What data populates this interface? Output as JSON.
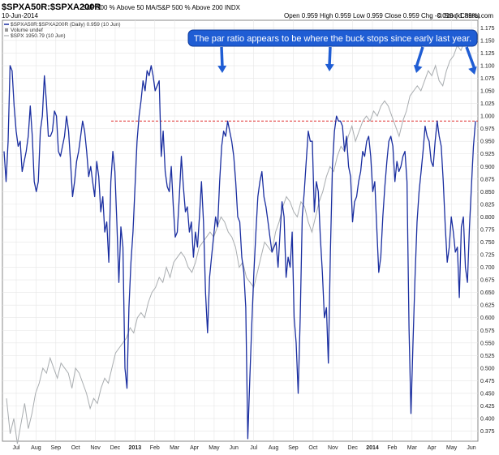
{
  "header": {
    "symbol": "$SPXA50R:$SPXA200R",
    "description": "S&P 500 % Above 50 MA/S&P 500 % Above 200 INDX",
    "date": "10-Jun-2014",
    "quote": "Open 0.959  High 0.959  Low 0.959  Close 0.959  Chg -0.019 (-1.89%)",
    "quote_color": "#000000",
    "watermark": "© StockCharts.com"
  },
  "legend": {
    "main": "$SPXA50R:$SPXA200R (Daily) 0.959 (10 Jun)",
    "volume": "Volume undef",
    "overlay": "$SPX 1950.79 (10 Jun)"
  },
  "annotation": {
    "text": "The par ratio appears to be where the buck stops since early last year.",
    "box_color": "#1f5dd4"
  },
  "colors": {
    "ratio_line": "#1a2ea0",
    "spx_line": "#a9adb0",
    "reference_line": "#e03030",
    "arrow": "#1f5dd4"
  },
  "chart_data": {
    "type": "line",
    "title": "$SPXA50R:$SPXA200R",
    "x_ticks": [
      "Jul",
      "Aug",
      "Sep",
      "Oct",
      "Nov",
      "Dec",
      "2013",
      "Feb",
      "Mar",
      "Apr",
      "May",
      "Jun",
      "Jul",
      "Aug",
      "Sep",
      "Oct",
      "Nov",
      "Dec",
      "2014",
      "Feb",
      "Mar",
      "Apr",
      "May",
      "Jun"
    ],
    "y_ticks": [
      0.375,
      0.4,
      0.425,
      0.45,
      0.475,
      0.5,
      0.525,
      0.55,
      0.575,
      0.6,
      0.625,
      0.65,
      0.675,
      0.7,
      0.725,
      0.75,
      0.775,
      0.8,
      0.825,
      0.85,
      0.875,
      0.9,
      0.925,
      0.95,
      0.975,
      1.0,
      1.025,
      1.05,
      1.075,
      1.1,
      1.125,
      1.15,
      1.175
    ],
    "ylim": [
      0.355,
      1.19
    ],
    "grid": true,
    "reference_line": 0.99,
    "series": [
      {
        "name": "$SPXA50R:$SPXA200R",
        "values": [
          0.93,
          0.87,
          0.95,
          1.1,
          1.09,
          1.02,
          0.97,
          0.94,
          0.95,
          0.89,
          0.91,
          0.93,
          0.96,
          1.02,
          0.96,
          0.87,
          0.85,
          0.87,
          0.97,
          1.0,
          1.08,
          1.03,
          0.96,
          0.96,
          0.97,
          1.01,
          1.0,
          0.93,
          0.92,
          0.94,
          0.96,
          1.0,
          0.97,
          0.91,
          0.84,
          0.87,
          0.91,
          0.93,
          0.96,
          0.99,
          0.97,
          0.93,
          0.88,
          0.9,
          0.87,
          0.84,
          0.91,
          0.88,
          0.81,
          0.84,
          0.77,
          0.79,
          0.71,
          0.87,
          0.93,
          0.89,
          0.79,
          0.67,
          0.78,
          0.74,
          0.5,
          0.46,
          0.62,
          0.71,
          0.77,
          0.86,
          0.95,
          1.0,
          1.03,
          1.07,
          1.05,
          1.09,
          1.08,
          1.1,
          1.08,
          1.05,
          1.06,
          1.07,
          0.92,
          0.97,
          0.89,
          0.86,
          0.85,
          0.9,
          0.82,
          0.76,
          0.77,
          0.84,
          0.92,
          0.86,
          0.81,
          0.82,
          0.77,
          0.79,
          0.72,
          0.77,
          0.74,
          0.8,
          0.87,
          0.79,
          0.65,
          0.57,
          0.68,
          0.72,
          0.76,
          0.8,
          0.78,
          0.87,
          0.94,
          0.97,
          0.96,
          0.99,
          0.97,
          0.95,
          0.92,
          0.87,
          0.8,
          0.79,
          0.72,
          0.69,
          0.62,
          0.36,
          0.48,
          0.59,
          0.69,
          0.77,
          0.84,
          0.87,
          0.89,
          0.84,
          0.82,
          0.79,
          0.76,
          0.73,
          0.74,
          0.75,
          0.7,
          0.77,
          0.83,
          0.8,
          0.68,
          0.72,
          0.7,
          0.77,
          0.6,
          0.55,
          0.45,
          0.6,
          0.8,
          0.85,
          0.91,
          0.97,
          0.95,
          0.95,
          0.81,
          0.87,
          0.85,
          0.76,
          0.69,
          0.6,
          0.62,
          0.51,
          0.73,
          0.9,
          0.97,
          1.0,
          0.99,
          0.99,
          0.98,
          0.93,
          0.96,
          0.9,
          0.88,
          0.79,
          0.83,
          0.84,
          0.87,
          0.89,
          0.93,
          0.92,
          0.95,
          0.96,
          0.92,
          0.85,
          0.87,
          0.78,
          0.69,
          0.72,
          0.8,
          0.86,
          0.91,
          0.95,
          0.96,
          0.94,
          0.87,
          0.91,
          0.89,
          0.9,
          0.92,
          0.93,
          0.87,
          0.58,
          0.41,
          0.55,
          0.68,
          0.79,
          0.85,
          0.89,
          0.93,
          0.98,
          0.96,
          0.95,
          0.91,
          0.9,
          0.95,
          0.99,
          0.96,
          0.94,
          0.87,
          0.78,
          0.71,
          0.74,
          0.8,
          0.77,
          0.73,
          0.74,
          0.64,
          0.78,
          0.8,
          0.7,
          0.67,
          0.78,
          0.86,
          0.94,
          0.99
        ]
      },
      {
        "name": "$SPX 1950.79 (10 Jun)",
        "values": [
          0.44,
          0.37,
          0.4,
          0.35,
          0.39,
          0.43,
          0.38,
          0.41,
          0.45,
          0.47,
          0.5,
          0.49,
          0.52,
          0.5,
          0.48,
          0.51,
          0.5,
          0.49,
          0.46,
          0.5,
          0.49,
          0.47,
          0.45,
          0.42,
          0.44,
          0.43,
          0.46,
          0.48,
          0.47,
          0.5,
          0.53,
          0.54,
          0.55,
          0.56,
          0.58,
          0.57,
          0.6,
          0.61,
          0.6,
          0.63,
          0.65,
          0.66,
          0.68,
          0.67,
          0.7,
          0.68,
          0.71,
          0.72,
          0.73,
          0.72,
          0.7,
          0.69,
          0.71,
          0.74,
          0.75,
          0.76,
          0.77,
          0.76,
          0.78,
          0.8,
          0.79,
          0.77,
          0.76,
          0.74,
          0.7,
          0.71,
          0.68,
          0.67,
          0.66,
          0.69,
          0.72,
          0.75,
          0.74,
          0.73,
          0.77,
          0.79,
          0.82,
          0.84,
          0.83,
          0.81,
          0.8,
          0.83,
          0.82,
          0.79,
          0.77,
          0.8,
          0.83,
          0.85,
          0.88,
          0.9,
          0.89,
          0.92,
          0.94,
          0.93,
          0.96,
          0.98,
          0.95,
          0.97,
          0.99,
          1.0,
          0.99,
          1.01,
          1.0,
          1.02,
          1.03,
          1.02,
          1.0,
          0.98,
          0.96,
          0.99,
          1.01,
          1.04,
          1.05,
          1.06,
          1.05,
          1.07,
          1.09,
          1.08,
          1.1,
          1.07,
          1.06,
          1.09,
          1.11,
          1.12,
          1.14,
          1.13,
          1.15,
          1.16,
          1.15,
          1.17
        ]
      }
    ]
  }
}
